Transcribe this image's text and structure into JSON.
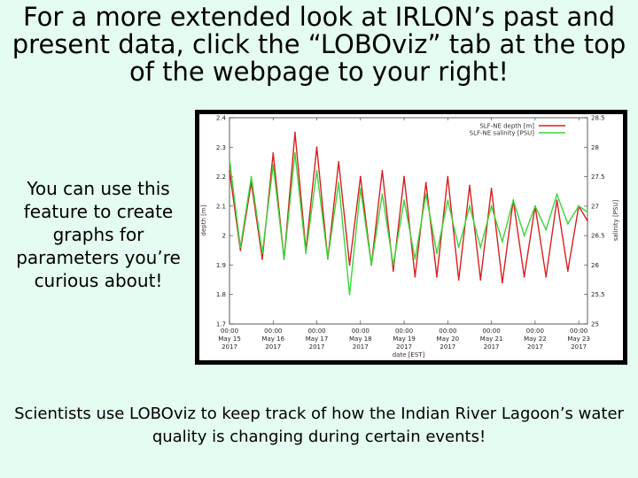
{
  "slide": {
    "headline": "For a more extended look at IRLON’s past and present data, click the “LOBOviz” tab at the top of the webpage to your right!",
    "side_note": "You can use this feature to create graphs for parameters you’re curious about!",
    "footer_note": "Scientists use LOBOviz to keep track of how the Indian River Lagoon’s water quality is changing during certain events!"
  },
  "chart_data": {
    "type": "line",
    "xlabel": "date [EST]",
    "ylabel_left": "depth [m]",
    "ylabel_right": "salinity [PSU]",
    "left_ylim": [
      1.7,
      2.4
    ],
    "left_ticks": [
      "1.7",
      "1.8",
      "1.9",
      "2",
      "2.1",
      "2.2",
      "2.3",
      "2.4"
    ],
    "right_ylim": [
      25,
      28.5
    ],
    "right_ticks": [
      "25",
      "25.5",
      "26",
      "26.5",
      "27",
      "27.5",
      "28",
      "28.5"
    ],
    "x_ticks": [
      [
        "00:00",
        "May 15",
        "2017"
      ],
      [
        "00:00",
        "May 16",
        "2017"
      ],
      [
        "00:00",
        "May 17",
        "2017"
      ],
      [
        "00:00",
        "May 18",
        "2017"
      ],
      [
        "00:00",
        "May 19",
        "2017"
      ],
      [
        "00:00",
        "May 20",
        "2017"
      ],
      [
        "00:00",
        "May 21",
        "2017"
      ],
      [
        "00:00",
        "May 22",
        "2017"
      ],
      [
        "00:00",
        "May 23",
        "2017"
      ]
    ],
    "x_range_days": [
      0,
      8.2
    ],
    "legend_placement": "top-right",
    "series": [
      {
        "name": "SLF-NE depth [m]",
        "axis": "left",
        "color": "#d62020",
        "x": [
          0,
          0.25,
          0.5,
          0.75,
          1,
          1.25,
          1.5,
          1.75,
          2,
          2.25,
          2.5,
          2.75,
          3,
          3.25,
          3.5,
          3.75,
          4,
          4.25,
          4.5,
          4.75,
          5,
          5.25,
          5.5,
          5.75,
          6,
          6.25,
          6.5,
          6.75,
          7,
          7.25,
          7.5,
          7.75,
          8,
          8.2
        ],
        "y": [
          2.22,
          1.95,
          2.18,
          1.92,
          2.28,
          1.92,
          2.35,
          1.95,
          2.3,
          1.92,
          2.25,
          1.9,
          2.2,
          1.9,
          2.22,
          1.88,
          2.2,
          1.86,
          2.18,
          1.86,
          2.2,
          1.85,
          2.17,
          1.85,
          2.16,
          1.84,
          2.12,
          1.86,
          2.1,
          1.86,
          2.12,
          1.88,
          2.1,
          2.05
        ]
      },
      {
        "name": "SLF-NE salinity [PSU]",
        "axis": "right",
        "color": "#3ad63a",
        "x": [
          0,
          0.25,
          0.5,
          0.75,
          1,
          1.25,
          1.5,
          1.75,
          2,
          2.25,
          2.5,
          2.75,
          3,
          3.25,
          3.5,
          3.75,
          4,
          4.25,
          4.5,
          4.75,
          5,
          5.25,
          5.5,
          5.75,
          6,
          6.25,
          6.5,
          6.75,
          7,
          7.25,
          7.5,
          7.75,
          8,
          8.2
        ],
        "y": [
          27.8,
          26.3,
          27.5,
          26.2,
          27.7,
          26.1,
          27.9,
          26.2,
          27.6,
          26.1,
          27.4,
          25.5,
          27.3,
          26.0,
          27.2,
          26.0,
          27.1,
          26.1,
          27.2,
          26.2,
          27.1,
          26.3,
          27.0,
          26.3,
          27.0,
          26.4,
          27.1,
          26.5,
          27.0,
          26.6,
          27.2,
          26.7,
          27.0,
          26.9
        ]
      }
    ]
  }
}
